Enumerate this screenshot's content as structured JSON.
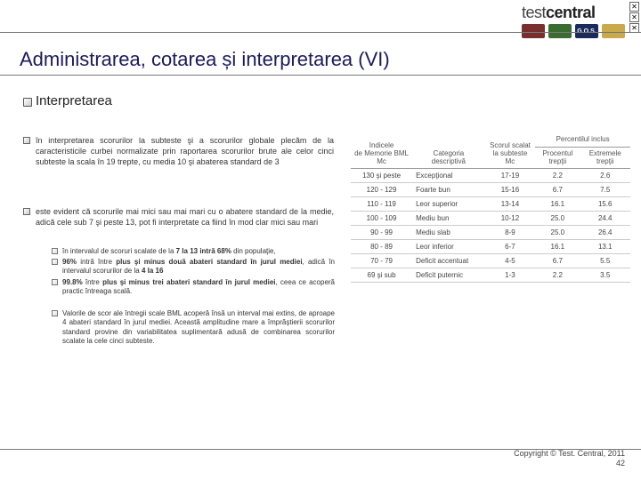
{
  "brand_left": "test",
  "brand_right": "central",
  "logo_chips": [
    {
      "bg": "#7a2f2f",
      "label": ""
    },
    {
      "bg": "#3a6b2f",
      "label": ""
    },
    {
      "bg": "#1a2a5a",
      "label": "G O.S."
    },
    {
      "bg": "#caa94a",
      "label": ""
    }
  ],
  "title": "Administrarea, cotarea și interpretarea (VI)",
  "subheading": "Interpretarea",
  "p1": "în interpretarea scorurilor la subteste şi a scorurilor globale plecăm de la caracteristicile curbei normalizate prin raportarea scorurilor brute ale celor cinci subteste la scala în 19 trepte, cu media 10 şi abaterea standard de 3",
  "p2": "este evident că scorurile mai mici sau mai mari cu o abatere standard de la medie, adică cele sub 7 şi peste 13, pot fi interpretate ca fiind în mod clar mici sau mari",
  "s1_a": "în intervalul de scoruri scalate de la ",
  "s1_b": "7 la 13 intră 68%",
  "s1_c": " din populaţie,",
  "s2_a": "96%",
  "s2_b": " intră între ",
  "s2_c": "plus şi minus două abateri standard în jurul mediei",
  "s2_d": ", adică în intervalul scorurilor de la ",
  "s2_e": "4 la 16",
  "s3_a": "99.8%",
  "s3_b": " între ",
  "s3_c": "plus şi minus trei abateri standard în jurul mediei",
  "s3_d": ", ceea ce acoperă practic întreaga scală.",
  "s4": "Valorile de scor ale întregii scale BML acoperă însă un interval mai extins, de aproape 4 abateri standard în jurul mediei. Această amplitudine mare a împrăştierii scorurilor standard provine din variabilitatea suplimentară adusă de combinarea scorurilor scalate la cele cinci subteste.",
  "table": {
    "headers": [
      "Indicele\nde Memorie BML\nMc",
      "Categoria\ndescriptivă",
      "Scorul scalat\nla subteste\nMc",
      "Percentilul inclus",
      "",
      ""
    ],
    "sub_headers": [
      "",
      "",
      "",
      "Procentul\ntrepţii",
      "Extremele\ntrepţii"
    ],
    "rows": [
      [
        "130 şi peste",
        "Excepţional",
        "17-19",
        "2.2",
        "2.6"
      ],
      [
        "120 - 129",
        "Foarte bun",
        "15-16",
        "6.7",
        "7.5"
      ],
      [
        "110 - 119",
        "Leor superior",
        "13-14",
        "16.1",
        "15.6"
      ],
      [
        "100 - 109",
        "Mediu bun",
        "10-12",
        "25.0",
        "24.4"
      ],
      [
        "90 - 99",
        "Mediu slab",
        "8-9",
        "25.0",
        "26.4"
      ],
      [
        "80 - 89",
        "Leor inferior",
        "6-7",
        "16.1",
        "13.1"
      ],
      [
        "70 - 79",
        "Deficit accentuat",
        "4-5",
        "6.7",
        "5.5"
      ],
      [
        "69 şi sub",
        "Deficit puternic",
        "1-3",
        "2.2",
        "3.5"
      ]
    ],
    "col_widths": [
      "22%",
      "26%",
      "18%",
      "16%",
      "18%"
    ]
  },
  "footer_line1": "Copyright © Test. Central, 2011",
  "footer_line2": "42"
}
